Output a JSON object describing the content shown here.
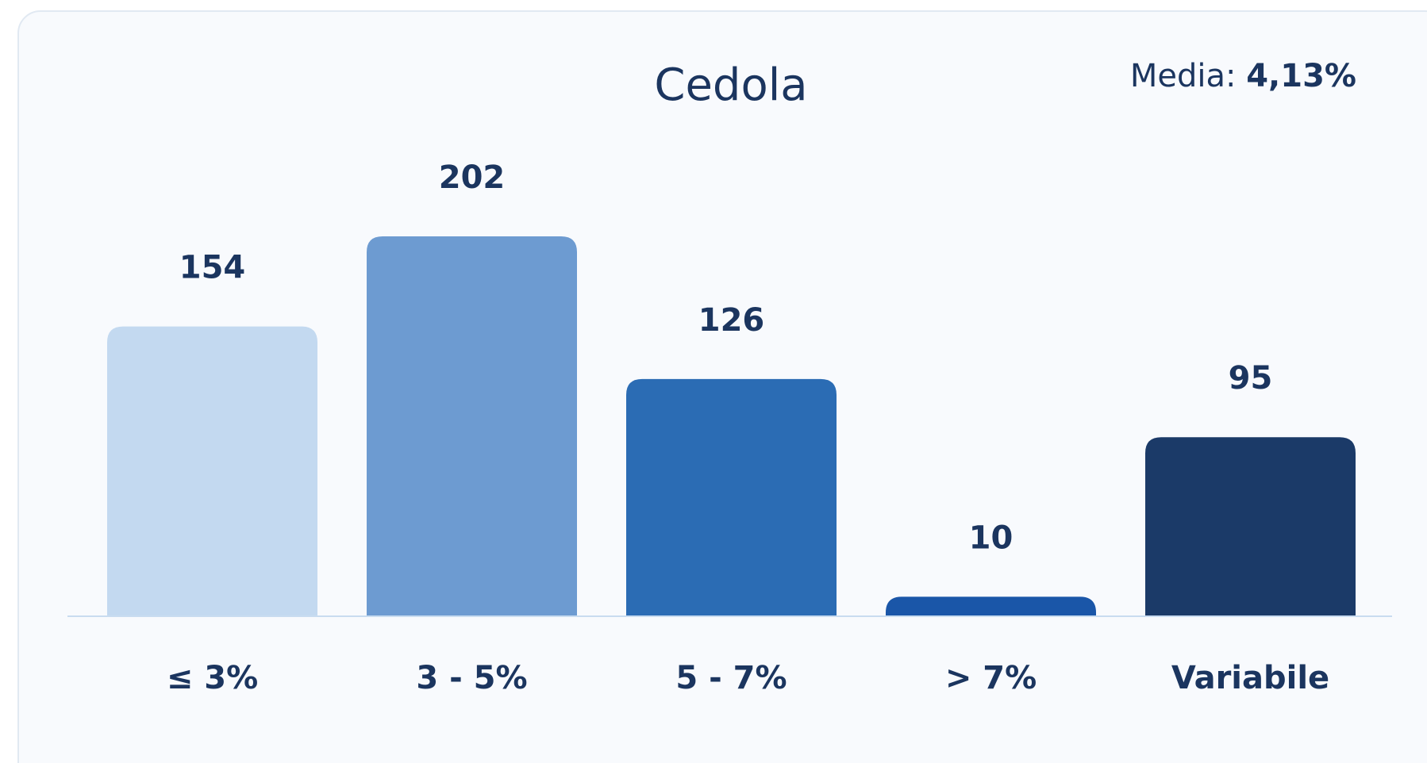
{
  "chart_data": {
    "type": "bar",
    "title": "Cedola",
    "annotation": {
      "label": "Media:",
      "value": "4,13%"
    },
    "categories": [
      "≤ 3%",
      "3 - 5%",
      "5 - 7%",
      "> 7%",
      "Variabile"
    ],
    "values": [
      154,
      202,
      126,
      10,
      95
    ],
    "colors": [
      "#c3d9f0",
      "#6d9bd1",
      "#2b6cb4",
      "#1a56a8",
      "#1b3a68"
    ]
  }
}
